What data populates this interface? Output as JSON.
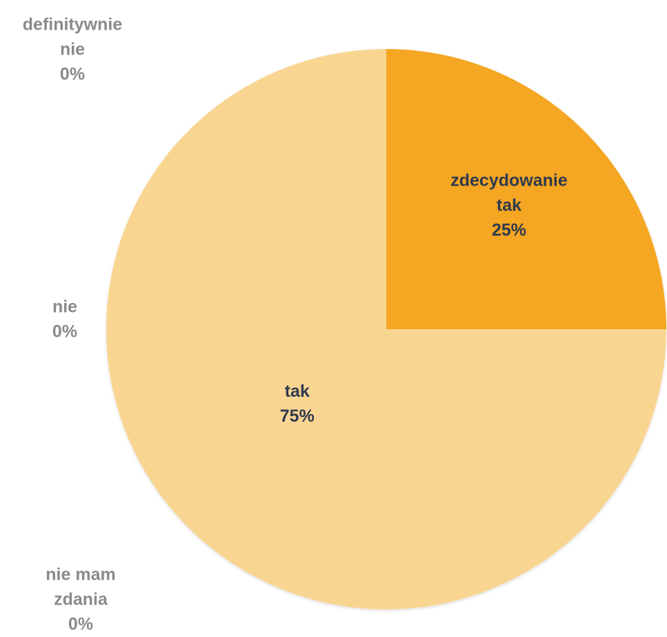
{
  "chart_data": {
    "type": "pie",
    "title": "",
    "start_angle_deg": 0,
    "direction": "clockwise",
    "slices": [
      {
        "name": "zdecydowanie tak",
        "lines": [
          "zdecydowanie",
          "tak",
          "25%"
        ],
        "value": 25,
        "percent_label": "25%",
        "color": "#F5A623",
        "label_position": "inside"
      },
      {
        "name": "tak",
        "lines": [
          "tak",
          "75%"
        ],
        "value": 75,
        "percent_label": "75%",
        "color": "#F9D592",
        "label_position": "inside"
      },
      {
        "name": "nie mam zdania",
        "lines": [
          "nie mam",
          "zdania",
          "0%"
        ],
        "value": 0,
        "percent_label": "0%",
        "color": "#F9D592",
        "label_position": "outside"
      },
      {
        "name": "nie",
        "lines": [
          "nie",
          "0%"
        ],
        "value": 0,
        "percent_label": "0%",
        "color": "#F9D592",
        "label_position": "outside"
      },
      {
        "name": "definitywnie nie",
        "lines": [
          "definitywnie",
          "nie",
          "0%"
        ],
        "value": 0,
        "percent_label": "0%",
        "color": "#F9D592",
        "label_position": "outside"
      }
    ]
  }
}
